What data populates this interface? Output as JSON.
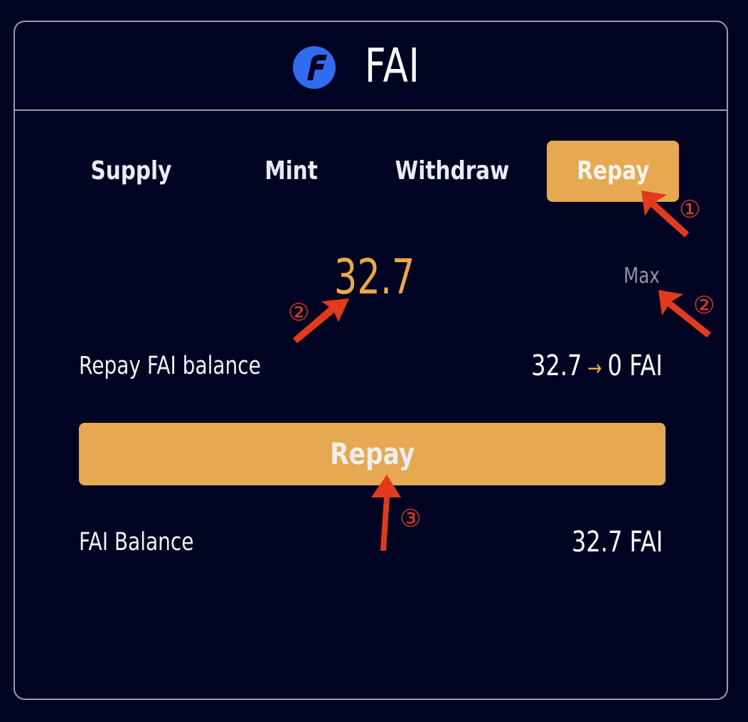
{
  "header": {
    "title": "FAI",
    "logo_icon": "fai-logo-icon"
  },
  "tabs": [
    {
      "label": "Supply",
      "active": false
    },
    {
      "label": "Mint",
      "active": false
    },
    {
      "label": "Withdraw",
      "active": false
    },
    {
      "label": "Repay",
      "active": true
    }
  ],
  "amount_input": {
    "value": "32.7",
    "max_label": "Max"
  },
  "repay_balance": {
    "label": "Repay FAI balance",
    "from": "32.7",
    "arrow_icon": "arrow-right-icon",
    "to": "0 FAI"
  },
  "repay_button": {
    "label": "Repay"
  },
  "fai_balance": {
    "label": "FAI Balance",
    "value": "32.7 FAI"
  },
  "annotations": {
    "step1": "①",
    "step2a": "②",
    "step2b": "②",
    "step3": "③"
  },
  "colors": {
    "background": "#000423",
    "accent": "#e6a851",
    "amount": "#eda745",
    "annotation": "#e5391e",
    "logo": "#2f6cf0"
  }
}
